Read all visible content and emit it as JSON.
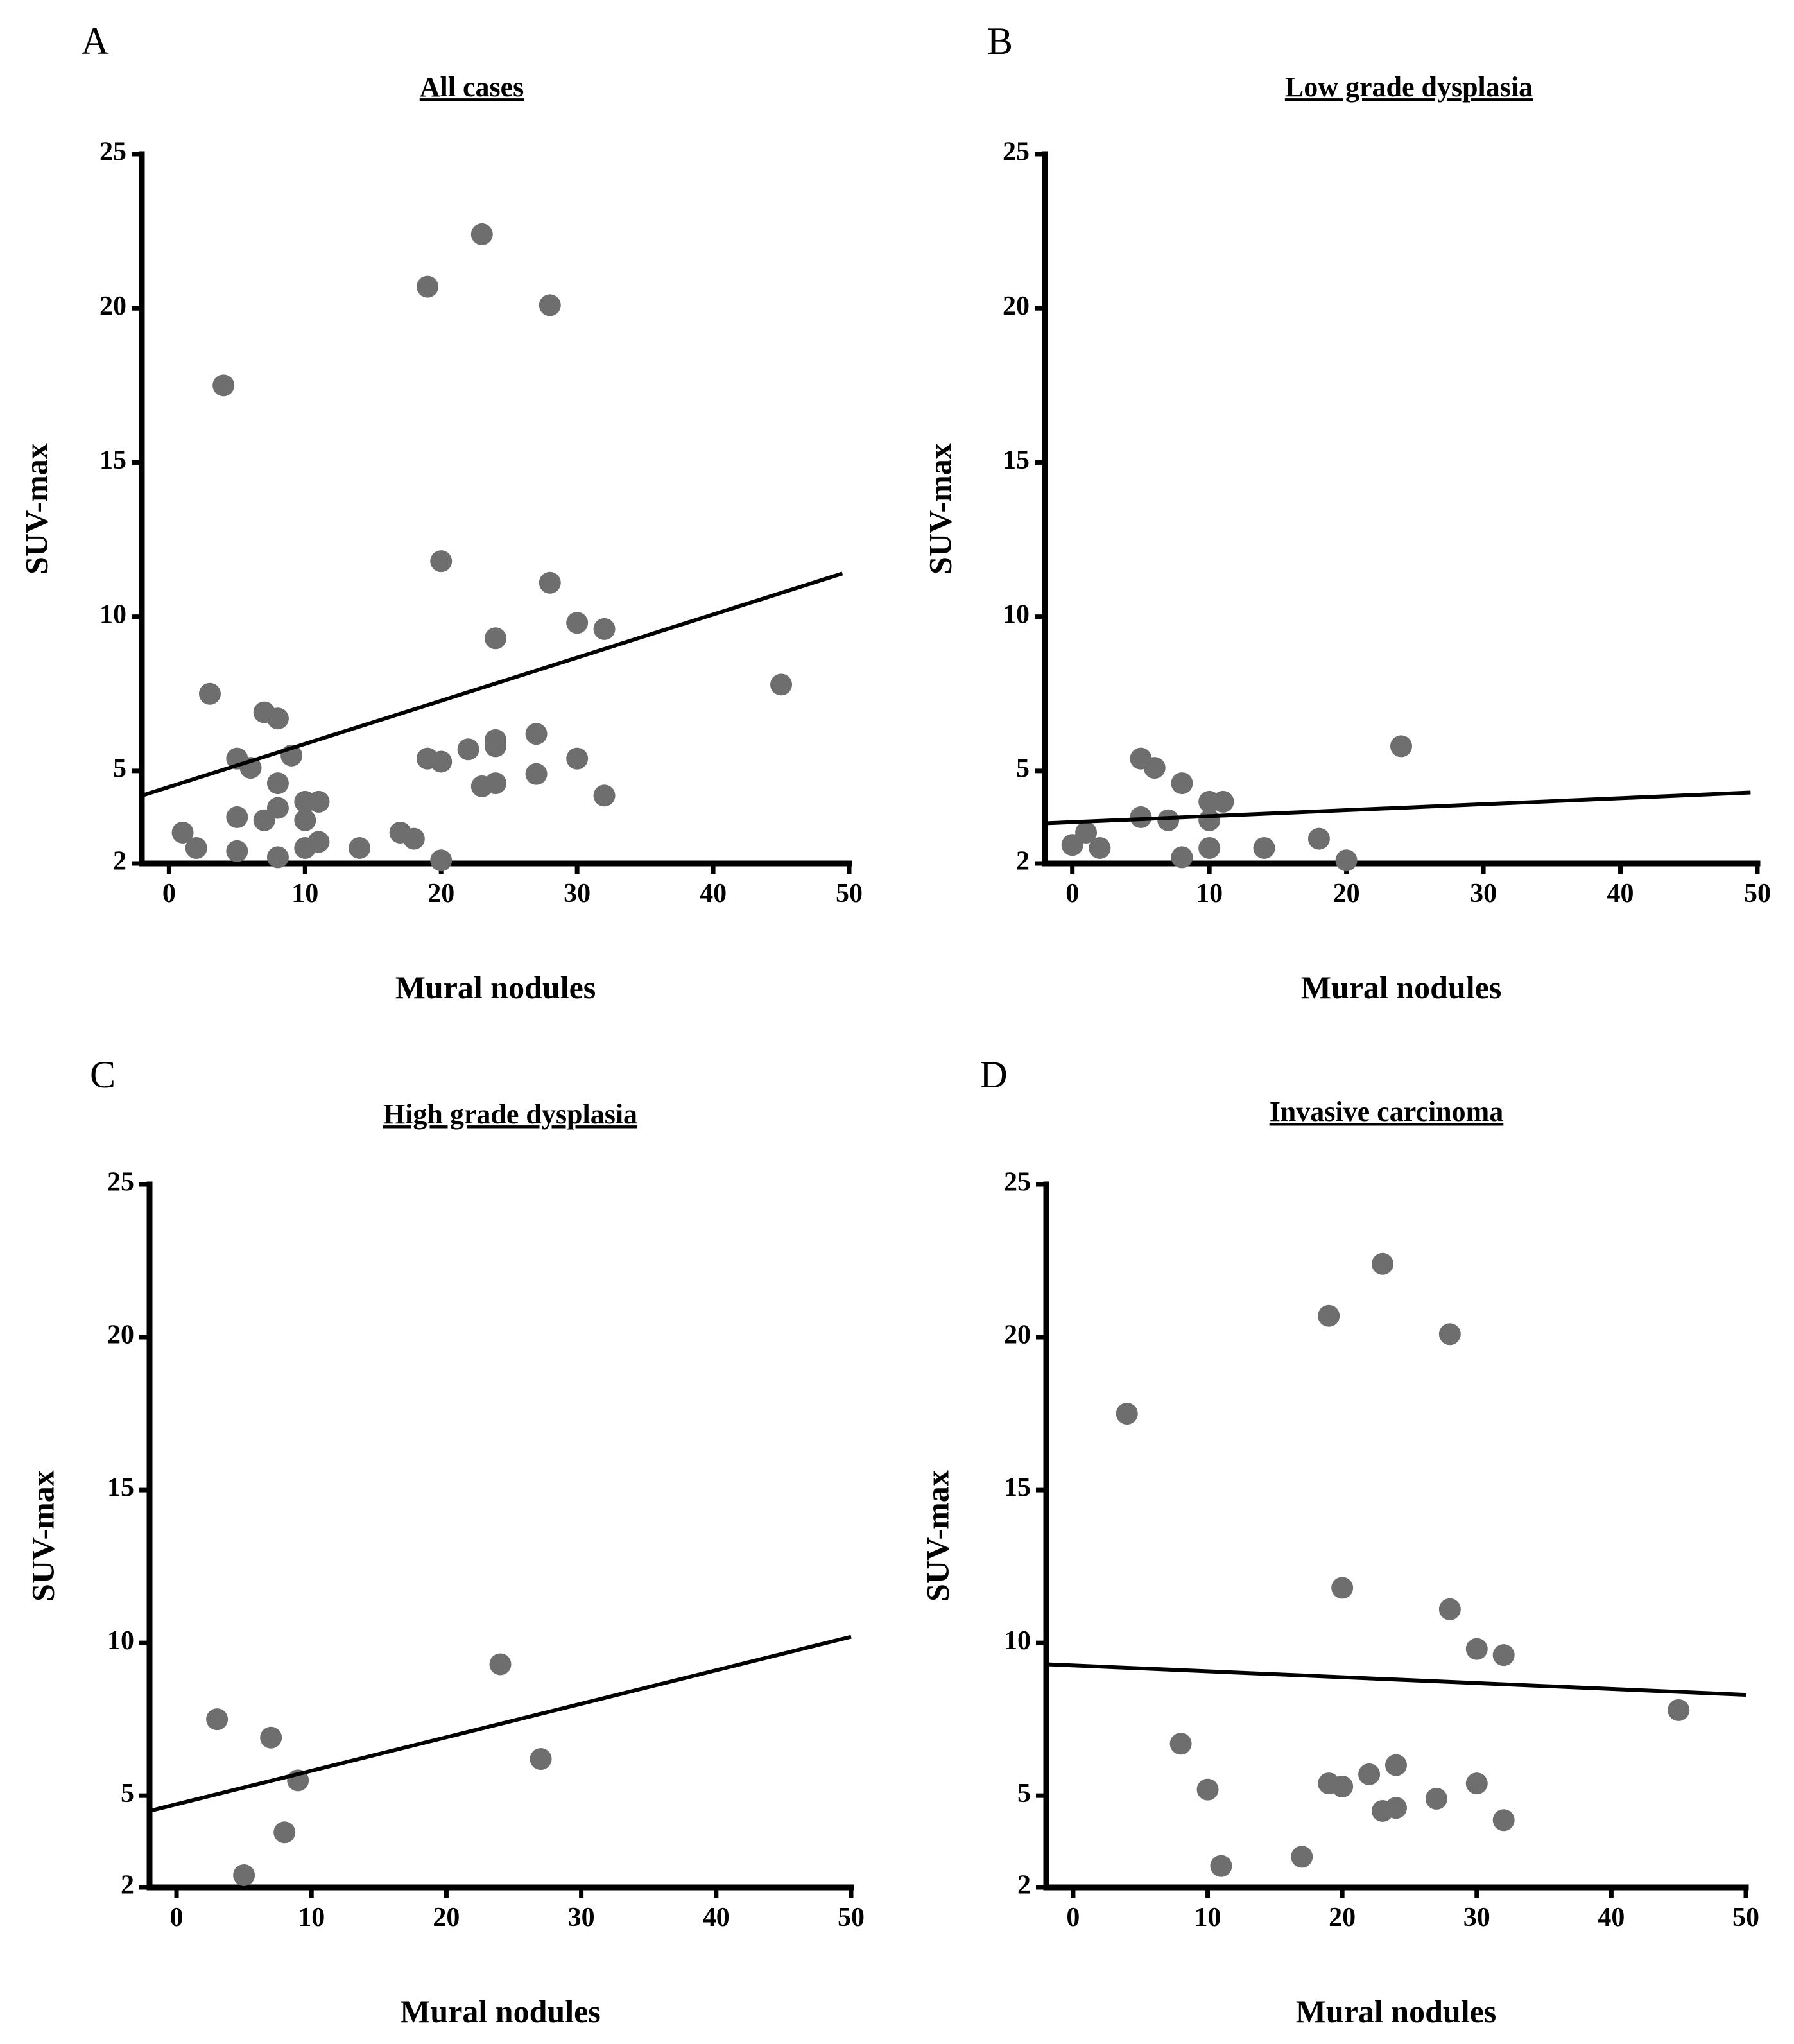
{
  "figure": {
    "background": "#ffffff",
    "point_color": "#6e6e6e",
    "line_color": "#000000"
  },
  "chart_data": [
    {
      "type": "scatter",
      "panel": "A",
      "title": "All cases",
      "xlabel": "Mural nodules",
      "ylabel": "SUV-max",
      "xlim": [
        -2,
        50
      ],
      "ylim": [
        2,
        25
      ],
      "xticks": [
        0,
        10,
        20,
        30,
        40,
        50
      ],
      "yticks": [
        2,
        5,
        10,
        15,
        20,
        25
      ],
      "points": [
        [
          1,
          3.0
        ],
        [
          2,
          2.5
        ],
        [
          3,
          7.5
        ],
        [
          4,
          17.5
        ],
        [
          5,
          5.4
        ],
        [
          5,
          3.5
        ],
        [
          5,
          2.4
        ],
        [
          6,
          5.1
        ],
        [
          7,
          6.9
        ],
        [
          7,
          3.4
        ],
        [
          8,
          6.7
        ],
        [
          8,
          4.6
        ],
        [
          8,
          3.8
        ],
        [
          8,
          2.2
        ],
        [
          9,
          5.5
        ],
        [
          10,
          4.0
        ],
        [
          10,
          3.4
        ],
        [
          10,
          2.5
        ],
        [
          11,
          4.0
        ],
        [
          11,
          2.7
        ],
        [
          14,
          2.5
        ],
        [
          17,
          3.0
        ],
        [
          18,
          2.8
        ],
        [
          19,
          20.7
        ],
        [
          19,
          5.4
        ],
        [
          20,
          11.8
        ],
        [
          20,
          5.3
        ],
        [
          20,
          2.1
        ],
        [
          22,
          5.7
        ],
        [
          23,
          22.4
        ],
        [
          23,
          4.5
        ],
        [
          24,
          9.3
        ],
        [
          24,
          6.0
        ],
        [
          24,
          5.8
        ],
        [
          24,
          4.6
        ],
        [
          27,
          6.2
        ],
        [
          27,
          4.9
        ],
        [
          28,
          20.1
        ],
        [
          28,
          11.1
        ],
        [
          30,
          9.8
        ],
        [
          30,
          5.4
        ],
        [
          32,
          9.6
        ],
        [
          32,
          4.2
        ],
        [
          45,
          7.8
        ]
      ],
      "trend": {
        "x": [
          -2,
          49.5
        ],
        "y": [
          4.2,
          11.4
        ]
      }
    },
    {
      "type": "scatter",
      "panel": "B",
      "title": "Low grade dysplasia",
      "xlabel": "Mural nodules",
      "ylabel": "SUV-max",
      "xlim": [
        -2,
        50
      ],
      "ylim": [
        2,
        25
      ],
      "xticks": [
        0,
        10,
        20,
        30,
        40,
        50
      ],
      "yticks": [
        2,
        5,
        10,
        15,
        20,
        25
      ],
      "points": [
        [
          0,
          2.6
        ],
        [
          1,
          3.0
        ],
        [
          2,
          2.5
        ],
        [
          5,
          5.4
        ],
        [
          5,
          3.5
        ],
        [
          6,
          5.1
        ],
        [
          7,
          3.4
        ],
        [
          8,
          4.6
        ],
        [
          8,
          2.2
        ],
        [
          10,
          4.0
        ],
        [
          10,
          3.4
        ],
        [
          10,
          2.5
        ],
        [
          11,
          4.0
        ],
        [
          14,
          2.5
        ],
        [
          18,
          2.8
        ],
        [
          20,
          2.1
        ],
        [
          24,
          5.8
        ]
      ],
      "trend": {
        "x": [
          -2,
          49.5
        ],
        "y": [
          3.3,
          4.3
        ]
      }
    },
    {
      "type": "scatter",
      "panel": "C",
      "title": "High grade dysplasia",
      "xlabel": "Mural nodules",
      "ylabel": "SUV-max",
      "xlim": [
        -2,
        50
      ],
      "ylim": [
        2,
        25
      ],
      "xticks": [
        0,
        10,
        20,
        30,
        40,
        50
      ],
      "yticks": [
        2,
        5,
        10,
        15,
        20,
        25
      ],
      "points": [
        [
          3,
          7.5
        ],
        [
          5,
          2.4
        ],
        [
          7,
          6.9
        ],
        [
          8,
          3.8
        ],
        [
          9,
          5.5
        ],
        [
          24,
          9.3
        ],
        [
          27,
          6.2
        ]
      ],
      "trend": {
        "x": [
          -2,
          50
        ],
        "y": [
          4.5,
          10.2
        ]
      }
    },
    {
      "type": "scatter",
      "panel": "D",
      "title": "Invasive carcinoma",
      "xlabel": "Mural nodules",
      "ylabel": "SUV-max",
      "xlim": [
        -2,
        50
      ],
      "ylim": [
        2,
        25
      ],
      "xticks": [
        0,
        10,
        20,
        30,
        40,
        50
      ],
      "yticks": [
        2,
        5,
        10,
        15,
        20,
        25
      ],
      "points": [
        [
          4,
          17.5
        ],
        [
          8,
          6.7
        ],
        [
          10,
          5.2
        ],
        [
          11,
          2.7
        ],
        [
          17,
          3.0
        ],
        [
          19,
          20.7
        ],
        [
          19,
          5.4
        ],
        [
          20,
          11.8
        ],
        [
          20,
          5.3
        ],
        [
          22,
          5.7
        ],
        [
          23,
          22.4
        ],
        [
          23,
          4.5
        ],
        [
          24,
          6.0
        ],
        [
          24,
          4.6
        ],
        [
          27,
          4.9
        ],
        [
          28,
          20.1
        ],
        [
          28,
          11.1
        ],
        [
          30,
          9.8
        ],
        [
          30,
          5.4
        ],
        [
          32,
          9.6
        ],
        [
          32,
          4.2
        ],
        [
          45,
          7.8
        ]
      ],
      "trend": {
        "x": [
          -2,
          50
        ],
        "y": [
          9.3,
          8.3
        ]
      }
    }
  ]
}
